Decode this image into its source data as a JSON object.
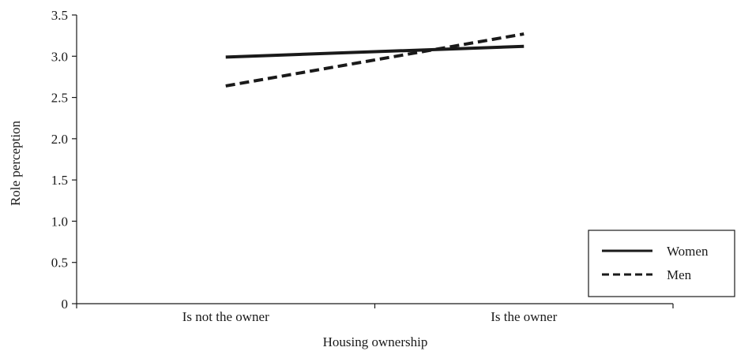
{
  "chart_data": {
    "type": "line",
    "title": "",
    "xlabel": "Housing ownership",
    "ylabel": "Role perception",
    "categories": [
      "Is not the owner",
      "Is the owner"
    ],
    "ylim": [
      0,
      3.5
    ],
    "yticks": [
      "0",
      "0.5",
      "1.0",
      "1.5",
      "2.0",
      "2.5",
      "3.0",
      "3.5"
    ],
    "grid": false,
    "legend_position": "bottom-right",
    "series": [
      {
        "name": "Women",
        "values": [
          2.99,
          3.12
        ],
        "style": "solid",
        "color": "#1a1a1a"
      },
      {
        "name": "Men",
        "values": [
          2.64,
          3.27
        ],
        "style": "dashed",
        "color": "#1a1a1a"
      }
    ]
  }
}
